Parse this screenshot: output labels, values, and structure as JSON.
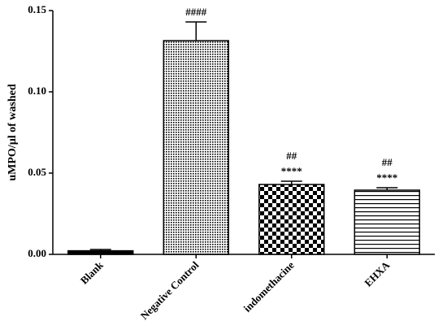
{
  "chart_data": {
    "type": "bar",
    "y_label": "uMPO/µl of washed",
    "categories": [
      "Blank",
      "Negative Control",
      "indomethacine",
      "EHXA"
    ],
    "values": [
      0.0022,
      0.1315,
      0.043,
      0.0395
    ],
    "errors": [
      0.0008,
      0.0115,
      0.002,
      0.0015
    ],
    "patterns": [
      "solid",
      "dots",
      "checker",
      "hlines"
    ],
    "hash_labels": [
      null,
      "####",
      "##",
      "##"
    ],
    "star_labels": [
      null,
      null,
      "****",
      "****"
    ],
    "color": "#000000",
    "ylim": [
      0,
      0.15
    ],
    "yticks": [
      {
        "value": 0,
        "label": "0.00"
      },
      0.05,
      {
        "value": 0.1,
        "label": "0.10"
      },
      0.15
    ]
  }
}
